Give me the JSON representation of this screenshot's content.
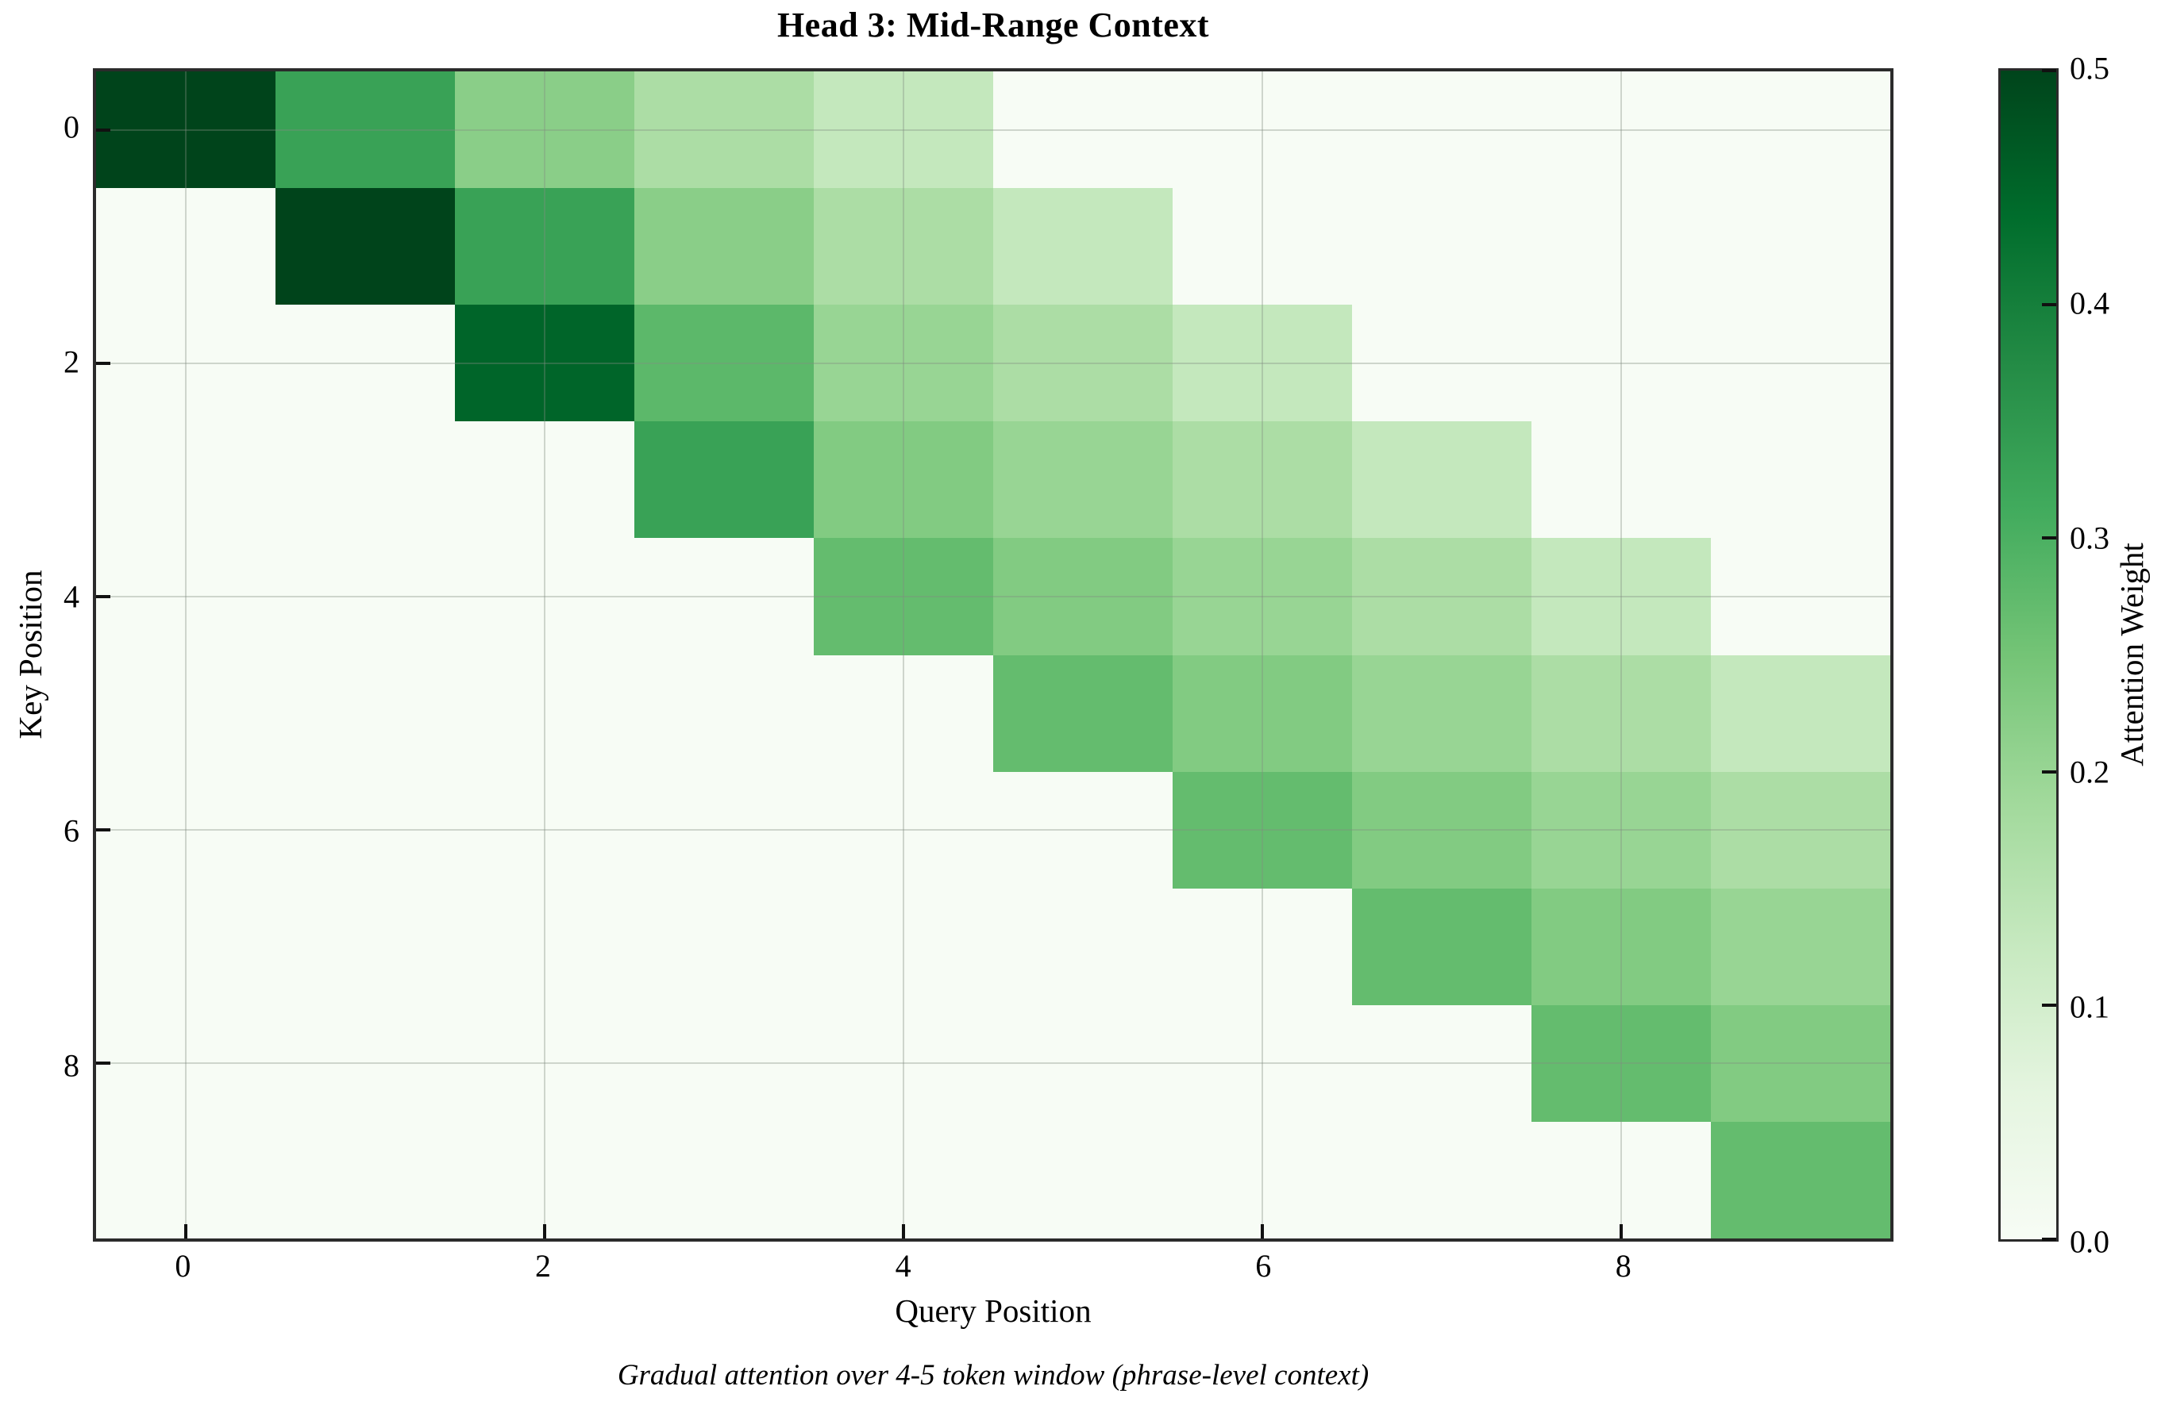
{
  "title": "Head 3: Mid-Range Context",
  "caption": "Gradual attention over 4-5 token window (phrase-level context)",
  "x_axis": {
    "label": "Query Position",
    "tick_labels": [
      "0",
      "2",
      "4",
      "6",
      "8"
    ],
    "tick_values": [
      0,
      2,
      4,
      6,
      8
    ]
  },
  "y_axis": {
    "label": "Key Position",
    "tick_labels": [
      "0",
      "2",
      "4",
      "6",
      "8"
    ],
    "tick_values": [
      0,
      2,
      4,
      6,
      8
    ]
  },
  "colorbar": {
    "label": "Attention Weight",
    "tick_labels": [
      "0.0",
      "0.1",
      "0.2",
      "0.3",
      "0.4",
      "0.5"
    ],
    "tick_values": [
      0.0,
      0.1,
      0.2,
      0.3,
      0.4,
      0.5
    ],
    "vmin": 0.0,
    "vmax": 0.5
  },
  "colors": {
    "background": "#ffffff",
    "spine": "#2b2b2b",
    "tick": "#111111",
    "grid": "rgba(130,140,130,0.35)",
    "cmap_darkest": "#00441b",
    "cmap_lightest": "#f7fcf5"
  },
  "chart_data": {
    "type": "heatmap",
    "title": "Head 3: Mid-Range Context",
    "xlabel": "Query Position",
    "ylabel": "Key Position",
    "colormap": "Greens",
    "vmin": 0.0,
    "vmax": 0.5,
    "grid": true,
    "x_queries": [
      0,
      1,
      2,
      3,
      4,
      5,
      6,
      7,
      8,
      9
    ],
    "y_keys": [
      0,
      1,
      2,
      3,
      4,
      5,
      6,
      7,
      8,
      9
    ],
    "rows_are_keys": true,
    "matrix": [
      [
        1.0,
        0.33,
        0.22,
        0.17,
        0.13,
        0.0,
        0.0,
        0.0,
        0.0,
        0.0
      ],
      [
        0.0,
        0.67,
        0.33,
        0.22,
        0.17,
        0.13,
        0.0,
        0.0,
        0.0,
        0.0
      ],
      [
        0.0,
        0.0,
        0.45,
        0.28,
        0.2,
        0.17,
        0.13,
        0.0,
        0.0,
        0.0
      ],
      [
        0.0,
        0.0,
        0.0,
        0.33,
        0.23,
        0.2,
        0.17,
        0.13,
        0.0,
        0.0
      ],
      [
        0.0,
        0.0,
        0.0,
        0.0,
        0.27,
        0.23,
        0.2,
        0.17,
        0.13,
        0.0
      ],
      [
        0.0,
        0.0,
        0.0,
        0.0,
        0.0,
        0.27,
        0.23,
        0.2,
        0.17,
        0.13
      ],
      [
        0.0,
        0.0,
        0.0,
        0.0,
        0.0,
        0.0,
        0.27,
        0.23,
        0.2,
        0.17
      ],
      [
        0.0,
        0.0,
        0.0,
        0.0,
        0.0,
        0.0,
        0.0,
        0.27,
        0.23,
        0.2
      ],
      [
        0.0,
        0.0,
        0.0,
        0.0,
        0.0,
        0.0,
        0.0,
        0.0,
        0.27,
        0.23
      ],
      [
        0.0,
        0.0,
        0.0,
        0.0,
        0.0,
        0.0,
        0.0,
        0.0,
        0.0,
        0.27
      ]
    ]
  }
}
